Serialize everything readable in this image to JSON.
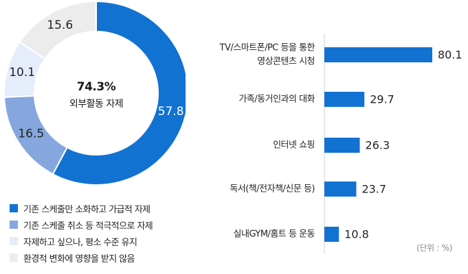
{
  "chart_data": [
    {
      "type": "pie",
      "center_value": "74.3%",
      "center_label": "외부활동 자제",
      "slices": [
        {
          "label": "기존 스케줄만 소화하고 가급적 자제",
          "value": 57.8,
          "color": "#1272d2",
          "text_color": "#ffffff"
        },
        {
          "label": "기존 스케줄 취소 등 적극적으로 자제",
          "value": 16.5,
          "color": "#86a7dd",
          "text_color": "#222222"
        },
        {
          "label": "자제하고 싶으나, 평소 수준 유지",
          "value": 10.1,
          "color": "#e4edf9",
          "text_color": "#222222"
        },
        {
          "label": "환경적 변화에 영향을 받지 않음",
          "value": 15.6,
          "color": "#ececec",
          "text_color": "#222222"
        }
      ]
    },
    {
      "type": "bar",
      "orientation": "horizontal",
      "categories": [
        [
          "TV/스마트폰/PC 등을 통한",
          "영상콘텐츠 시청"
        ],
        [
          "가족/동거인과의 대화"
        ],
        [
          "인터넷 쇼핑"
        ],
        [
          "독서(책/전자책/신문 등)"
        ],
        [
          "실내GYM/홈트 등 운동"
        ]
      ],
      "values": [
        80.1,
        29.7,
        26.3,
        23.7,
        10.8
      ],
      "bar_color": "#1272d2",
      "unit_label": "(단위 : %)",
      "xlim": [
        0,
        100
      ]
    }
  ]
}
